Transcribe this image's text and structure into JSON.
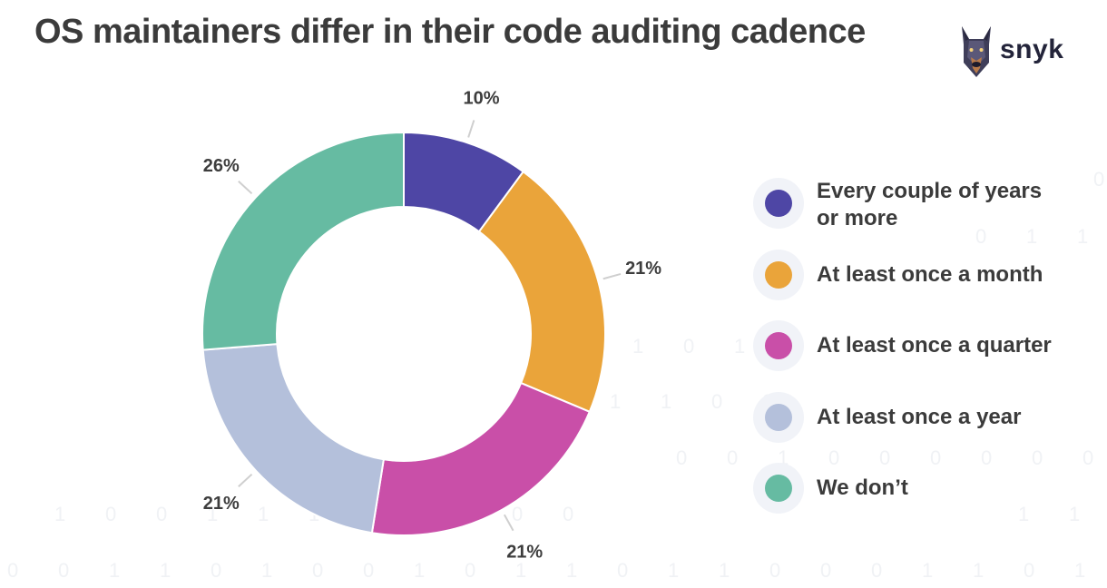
{
  "header": {
    "title": "OS maintainers differ in their code auditing cadence",
    "brand": "snyk"
  },
  "chart_data": {
    "type": "pie",
    "title": "OS maintainers differ in their code auditing cadence",
    "donut": true,
    "series": [
      {
        "name": "Every couple of years or more",
        "value": 10,
        "label": "10%",
        "color": "#4e46a5"
      },
      {
        "name": "At least once a month",
        "value": 21,
        "label": "21%",
        "color": "#eaa43a"
      },
      {
        "name": "At least once a quarter",
        "value": 21,
        "label": "21%",
        "color": "#c94fa8"
      },
      {
        "name": "At least once a year",
        "value": 21,
        "label": "21%",
        "color": "#b4c0db"
      },
      {
        "name": "We don’t",
        "value": 26,
        "label": "26%",
        "color": "#66bba2"
      }
    ],
    "legend_position": "right"
  },
  "legend": {
    "items": [
      {
        "label": "Every couple of years or more",
        "color": "#4e46a5"
      },
      {
        "label": "At least once a month",
        "color": "#eaa43a"
      },
      {
        "label": "At least once a quarter",
        "color": "#c94fa8"
      },
      {
        "label": "At least once a year",
        "color": "#b4c0db"
      },
      {
        "label": "We don’t",
        "color": "#66bba2"
      }
    ]
  },
  "background": {
    "digit_color": "#f0f2f5"
  }
}
